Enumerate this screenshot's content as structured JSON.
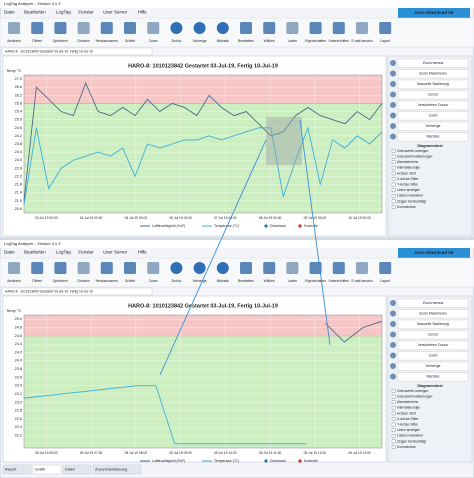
{
  "windows": [
    {
      "title": "LogTag Analyzer - Version 3.1.3",
      "menu": [
        "Datei",
        "Bearbeiten",
        "LogTag",
        "Fenster",
        "User Server",
        "Hilfe"
      ],
      "auto_download": "Auto download ist",
      "toolbar": [
        "Auslesen",
        "Öffnen",
        "Speichern",
        "Drucken",
        "Herauszoomen",
        "Schieb",
        "Zoom",
        "Zurück",
        "Vorherige",
        "Nächste",
        "Bearbeiten",
        "Wählen",
        "Laden",
        "Eigenschaften",
        "Unterschriften",
        "E-mail senden",
        "Layout"
      ],
      "tab": "HARO-8 - 1010123842 Gestartet 03-Jul-19, Fertig 10-Jul-19",
      "chart": {
        "type": "line",
        "title": "HARO-8: 1010123842 Gestartet 03-Jul-19, Fertig 10-Jul-19",
        "y_label": "Temp °C",
        "ylim": [
          20.4,
          27.2
        ],
        "upper_limit": 25.8,
        "yticks": [
          {
            "value": 20.6,
            "label": "20.6"
          },
          {
            "value": 21,
            "label": "21.0"
          },
          {
            "value": 21.4,
            "label": "21.4"
          },
          {
            "value": 21.8,
            "label": "21.8"
          },
          {
            "value": 22.2,
            "label": "22.2"
          },
          {
            "value": 22.6,
            "label": "22.6"
          },
          {
            "value": 23,
            "label": "23.0"
          },
          {
            "value": 23.4,
            "label": "23.4"
          },
          {
            "value": 23.8,
            "label": "23.8"
          },
          {
            "value": 24.2,
            "label": "24.2"
          },
          {
            "value": 24.6,
            "label": "24.6"
          },
          {
            "value": 25,
            "label": "25.0"
          },
          {
            "value": 25.4,
            "label": "25.4"
          },
          {
            "value": 25.8,
            "label": "25.8"
          },
          {
            "value": 26.2,
            "label": "26.2"
          },
          {
            "value": 26.6,
            "label": "26.6"
          },
          {
            "value": 27,
            "label": "27.0"
          }
        ],
        "x_labels": [
          "03 Jul 19 00:00",
          "04 Jul 19 00:00",
          "05 Jul 19 00:00",
          "06 Jul 19 00:00",
          "07 Jul 19 00:00",
          "08 Jul 19 00:00",
          "09 Jul 19 00:00",
          "10 Jul 19 00:00"
        ],
        "series": [
          {
            "name": "Luftfeuchtigkeit (%rF)",
            "color": "#4a6b8a",
            "values": [
              21.0,
              26.6,
              26.0,
              25.4,
              25.2,
              26.8,
              25.4,
              25.2,
              25.6,
              25.2,
              26.0,
              25.4,
              25.8,
              25.6,
              25.2,
              26.2,
              25.6,
              25.2,
              25.4,
              24.8,
              24.2,
              24.4,
              25.2,
              25.6,
              25.2,
              25.0,
              24.8,
              25.4,
              25.0,
              25.8
            ]
          },
          {
            "name": "Temperatur (°C)",
            "color": "#3bb0d9",
            "values": [
              20.8,
              24.6,
              21.6,
              22.6,
              23.0,
              23.2,
              23.4,
              23.2,
              23.6,
              22.2,
              23.8,
              23.6,
              23.8,
              24.0,
              24.0,
              24.2,
              24.0,
              24.2,
              24.4,
              24.6,
              24.6,
              21.2,
              23.0,
              24.6,
              21.8,
              24.0,
              23.6,
              24.2,
              23.8,
              24.4
            ]
          }
        ],
        "legend_extra": [
          "Download",
          "Kontrolle"
        ]
      },
      "side_panel": {
        "buttons": [
          "Zoom heraus",
          "Zoom Maximieren",
          "Manuelle Skalierung",
          "Cursor",
          "Verschieben Cursor",
          "Zoom",
          "Vorherige",
          "Nächste"
        ],
        "options_title": "Diagrammtext",
        "options": [
          "Grenzwerte anzeigen",
          "Grenzwertmarkierungen",
          "Alarmbereiche",
          "Intervallanzeige",
          "Achsen nicht",
          "X-Achse Gitter",
          "Y-Achse Gitter",
          "Linien anzeigen",
          "Lücken markieren",
          "Zeigen bei Bestätigt",
          "Kommentare"
        ]
      }
    },
    {
      "title": "LogTag Analyzer - Version 3.1.3",
      "menu": [
        "Datei",
        "Bearbeiten",
        "LogTag",
        "Fenster",
        "User Server",
        "Hilfe"
      ],
      "auto_download": "Auto download ist",
      "toolbar": [
        "Auslesen",
        "Öffnen",
        "Speichern",
        "Drucken",
        "Herauszoomen",
        "Schieb",
        "Zoom",
        "Zurück",
        "Vorherige",
        "Nächste",
        "Bearbeiten",
        "Wählen",
        "Laden",
        "Eigenschaften",
        "Unterschriften",
        "E-mail senden",
        "Layout"
      ],
      "tab": "HARO-8 - 1010123842 Gestartet 03-Jul-19, Fertig 10-Jul-19",
      "chart": {
        "type": "line",
        "title": "HARO-8: 1010123842 Gestartet 03-Jul-19, Fertig 10-Jul-19",
        "y_label": "Temp °C",
        "ylim": [
          21.9,
          25.1
        ],
        "upper_limit": 24.6,
        "yticks": [
          {
            "value": 22.2,
            "label": "22.2"
          },
          {
            "value": 22.4,
            "label": "22.4"
          },
          {
            "value": 22.6,
            "label": "22.6"
          },
          {
            "value": 22.8,
            "label": "22.8"
          },
          {
            "value": 23,
            "label": "23.0"
          },
          {
            "value": 23.2,
            "label": "23.2"
          },
          {
            "value": 23.4,
            "label": "23.4"
          },
          {
            "value": 23.6,
            "label": "23.6"
          },
          {
            "value": 23.8,
            "label": "23.8"
          },
          {
            "value": 24,
            "label": "24.0"
          },
          {
            "value": 24.2,
            "label": "24.2"
          },
          {
            "value": 24.4,
            "label": "24.4"
          },
          {
            "value": 24.6,
            "label": "24.6"
          },
          {
            "value": 24.8,
            "label": "24.8"
          },
          {
            "value": 25,
            "label": "25.0"
          }
        ],
        "x_labels": [
          "05 Jul 19 06:00",
          "05 Jul 19 07:00",
          "05 Jul 19 08:00",
          "05 Jul 19 09:00",
          "05 Jul 19 10:00",
          "05 Jul 19 11:00",
          "05 Jul 19 12:00",
          "05 Jul 19 13:00"
        ],
        "series": [
          {
            "name": "Luftfeuchtigkeit (%rF)",
            "color": "#4a6b8a",
            "values": [
              null,
              null,
              null,
              null,
              null,
              null,
              null,
              null,
              null,
              null,
              null,
              null,
              null,
              null,
              null,
              null,
              24.9,
              24.45,
              24.8,
              24.95
            ]
          },
          {
            "name": "Temperatur (°C)",
            "color": "#3bb0d9",
            "values": [
              23.1,
              23.15,
              23.2,
              23.25,
              23.3,
              23.35,
              23.4,
              23.4,
              22.0,
              22.0,
              22.0,
              22.0,
              22.0,
              22.0,
              22.0,
              22.0,
              null,
              null,
              null,
              22.1
            ]
          }
        ],
        "legend_extra": [
          "Download",
          "Kontrolle"
        ]
      },
      "side_panel": {
        "buttons": [
          "Zoom heraus",
          "Zoom Maximieren",
          "Manuelle Skalierung",
          "Cursor",
          "Verschieben Cursor",
          "Zoom",
          "Vorherige",
          "Nächste"
        ],
        "options_title": "Diagrammtext",
        "options": [
          "Grenzwerte anzeigen",
          "Grenzwertmarkierungen",
          "Alarmbereiche",
          "Intervallanzeige",
          "Achsen nicht",
          "X-Achse Gitter",
          "Y-Achse Gitter",
          "Linien anzeigen",
          "Lücken markieren",
          "Zeigen bei Bestätigt",
          "Kommentare"
        ]
      }
    }
  ],
  "bottom_tabs": [
    "Report",
    "Grafik",
    "Daten",
    "Zusammenfassung"
  ]
}
